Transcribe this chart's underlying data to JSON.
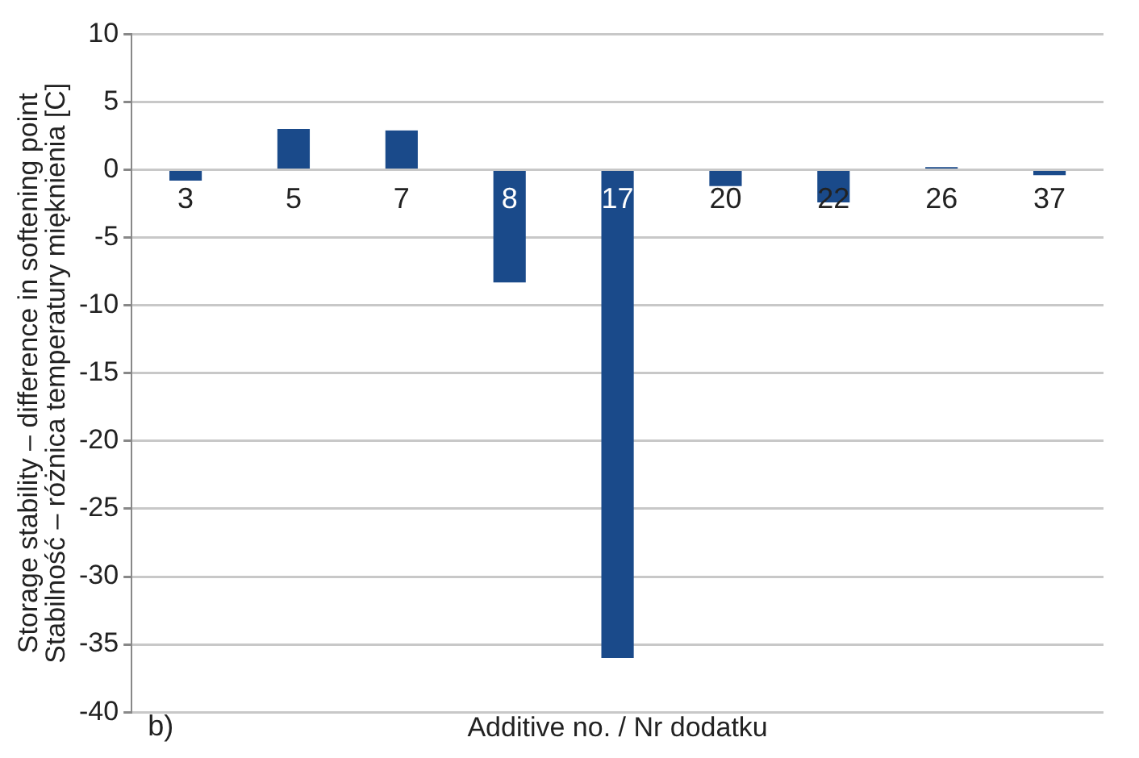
{
  "chart_data": {
    "type": "bar",
    "categories": [
      "3",
      "5",
      "7",
      "8",
      "17",
      "20",
      "22",
      "26",
      "37"
    ],
    "values": [
      -0.8,
      3.0,
      2.9,
      -8.3,
      -36,
      -1.2,
      -2.4,
      0.2,
      -0.4
    ],
    "color": "#1a4a8a",
    "ylabel": "Storage stability – difference in softening point\nStabilność – różnica temperatury mięknienia [C]",
    "xlabel": "Additive no. / Nr dodatku",
    "annotations": [
      "b)"
    ],
    "ylim": [
      -40,
      10
    ],
    "yticks": [
      -40,
      -35,
      -30,
      -25,
      -20,
      -15,
      -10,
      -5,
      0,
      5,
      10
    ],
    "grid": "y",
    "legend": false
  }
}
